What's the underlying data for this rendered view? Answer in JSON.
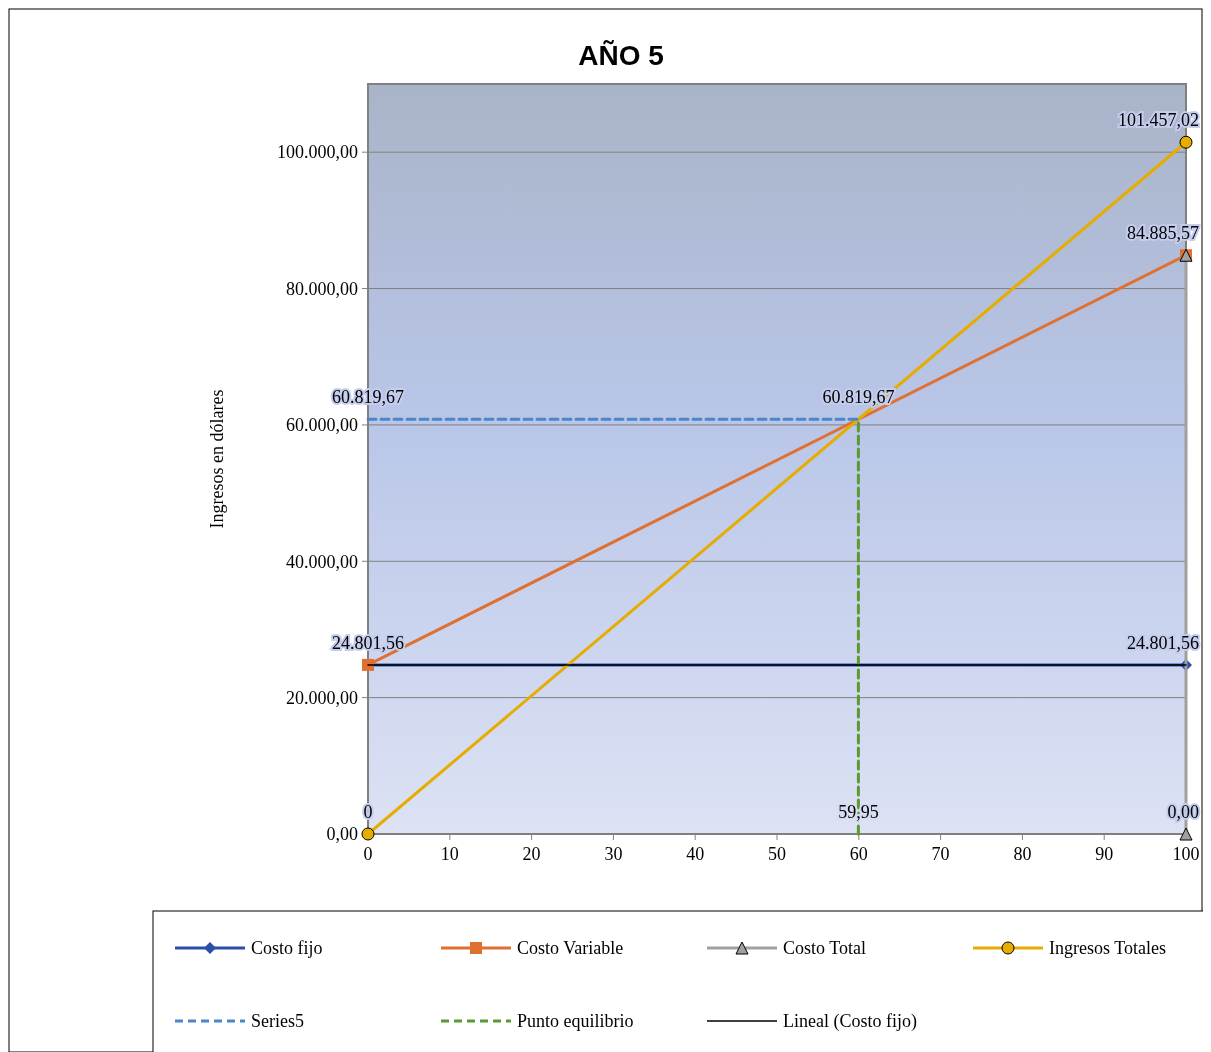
{
  "chart_data": {
    "type": "line",
    "title": "AÑO 5",
    "ylabel": "Ingresos  en dólares",
    "xlim": [
      0,
      100
    ],
    "xticks": [
      0,
      10,
      20,
      30,
      40,
      50,
      60,
      70,
      80,
      90,
      100
    ],
    "ylim": [
      0,
      110000
    ],
    "yticks": [
      {
        "value": 0,
        "label": "0,00"
      },
      {
        "value": 20000,
        "label": "20.000,00"
      },
      {
        "value": 40000,
        "label": "40.000,00"
      },
      {
        "value": 60000,
        "label": "60.000,00"
      },
      {
        "value": 80000,
        "label": "80.000,00"
      },
      {
        "value": 100000,
        "label": "100.000,00"
      }
    ],
    "grid": "y",
    "legend": "bottom",
    "annotations": [
      {
        "text": "59,95",
        "x": 59.95,
        "y": 0
      }
    ],
    "series": [
      {
        "name": "Costo fijo",
        "color": "#2b4fa8",
        "marker": "diamond",
        "line_style": "solid",
        "x": [
          0,
          100
        ],
        "values": [
          24801.56,
          24801.56
        ],
        "value_labels": [
          null,
          "24.801,56"
        ]
      },
      {
        "name": "Costo Variable",
        "color": "#e07030",
        "marker": "square",
        "line_style": "solid",
        "x": [
          0,
          100
        ],
        "values": [
          24801.56,
          84885.57
        ],
        "value_labels": [
          "24.801,56",
          "84.885,57"
        ]
      },
      {
        "name": "Costo Total",
        "color": "#a0a0a0",
        "marker": "triangle",
        "line_style": "solid",
        "x": [
          100,
          100
        ],
        "values": [
          0,
          84885.57
        ],
        "value_labels": [
          "0,00",
          null
        ]
      },
      {
        "name": "Ingresos Totales",
        "color": "#e6ac00",
        "marker": "circle",
        "line_style": "solid",
        "x": [
          0,
          100
        ],
        "values": [
          0,
          101457.02
        ],
        "value_labels": [
          "0",
          "101.457,02"
        ]
      },
      {
        "name": "Series5",
        "color": "#4a86c8",
        "marker": "none",
        "line_style": "dashed",
        "x": [
          0,
          59.95
        ],
        "values": [
          60819.67,
          60819.67
        ],
        "value_labels": [
          "60.819,67",
          null
        ]
      },
      {
        "name": "Punto equilibrio",
        "color": "#5a9a30",
        "marker": "none",
        "line_style": "dashed",
        "x": [
          59.95,
          59.95
        ],
        "values": [
          0,
          60819.67
        ],
        "value_labels": [
          null,
          "60.819,67"
        ]
      },
      {
        "name": "Lineal (Costo fijo)",
        "color": "#000000",
        "marker": "none",
        "line_style": "solid",
        "x": [
          0,
          100
        ],
        "values": [
          24801.56,
          24801.56
        ]
      }
    ]
  }
}
